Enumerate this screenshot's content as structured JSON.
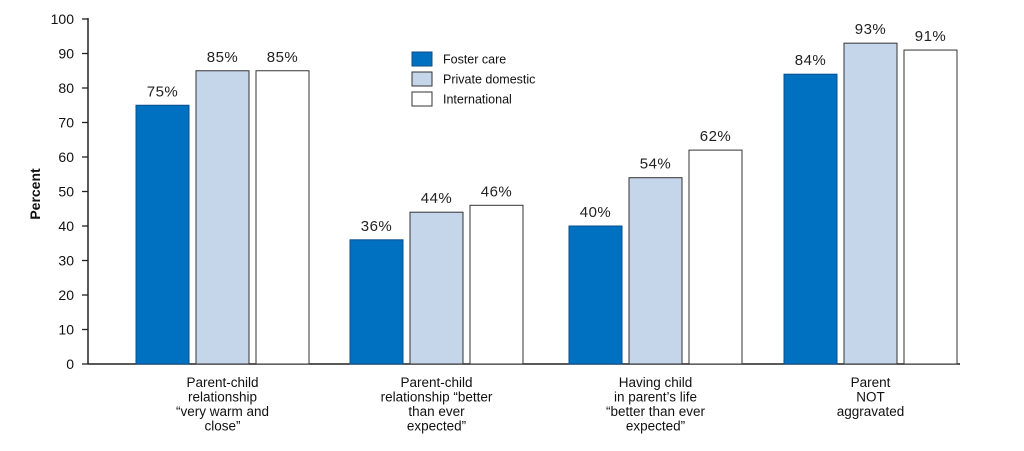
{
  "chart_data": {
    "type": "bar",
    "ylabel": "Percent",
    "ylim": [
      0,
      100
    ],
    "yticks": [
      0,
      10,
      20,
      30,
      40,
      50,
      60,
      70,
      80,
      90,
      100
    ],
    "categories": [
      [
        "Parent-child",
        "relationship",
        "“very warm and",
        "close”"
      ],
      [
        "Parent-child",
        "relationship “better",
        "than ever",
        "expected”"
      ],
      [
        "Having child",
        "in parent’s life",
        "“better than ever",
        "expected”"
      ],
      [
        "Parent",
        "NOT",
        "aggravated"
      ]
    ],
    "series": [
      {
        "name": "Foster care",
        "color": "#0070C0",
        "values": [
          75,
          36,
          40,
          84
        ],
        "labels": [
          "75%",
          "36%",
          "40%",
          "84%"
        ]
      },
      {
        "name": "Private domestic",
        "color": "#C5D5EA",
        "values": [
          85,
          44,
          54,
          93
        ],
        "labels": [
          "85%",
          "44%",
          "54%",
          "93%"
        ]
      },
      {
        "name": "International",
        "color": "#FFFFFF",
        "values": [
          85,
          46,
          62,
          91
        ],
        "labels": [
          "85%",
          "46%",
          "62%",
          "91%"
        ]
      }
    ],
    "legend_position": "top-center",
    "grid": false
  }
}
